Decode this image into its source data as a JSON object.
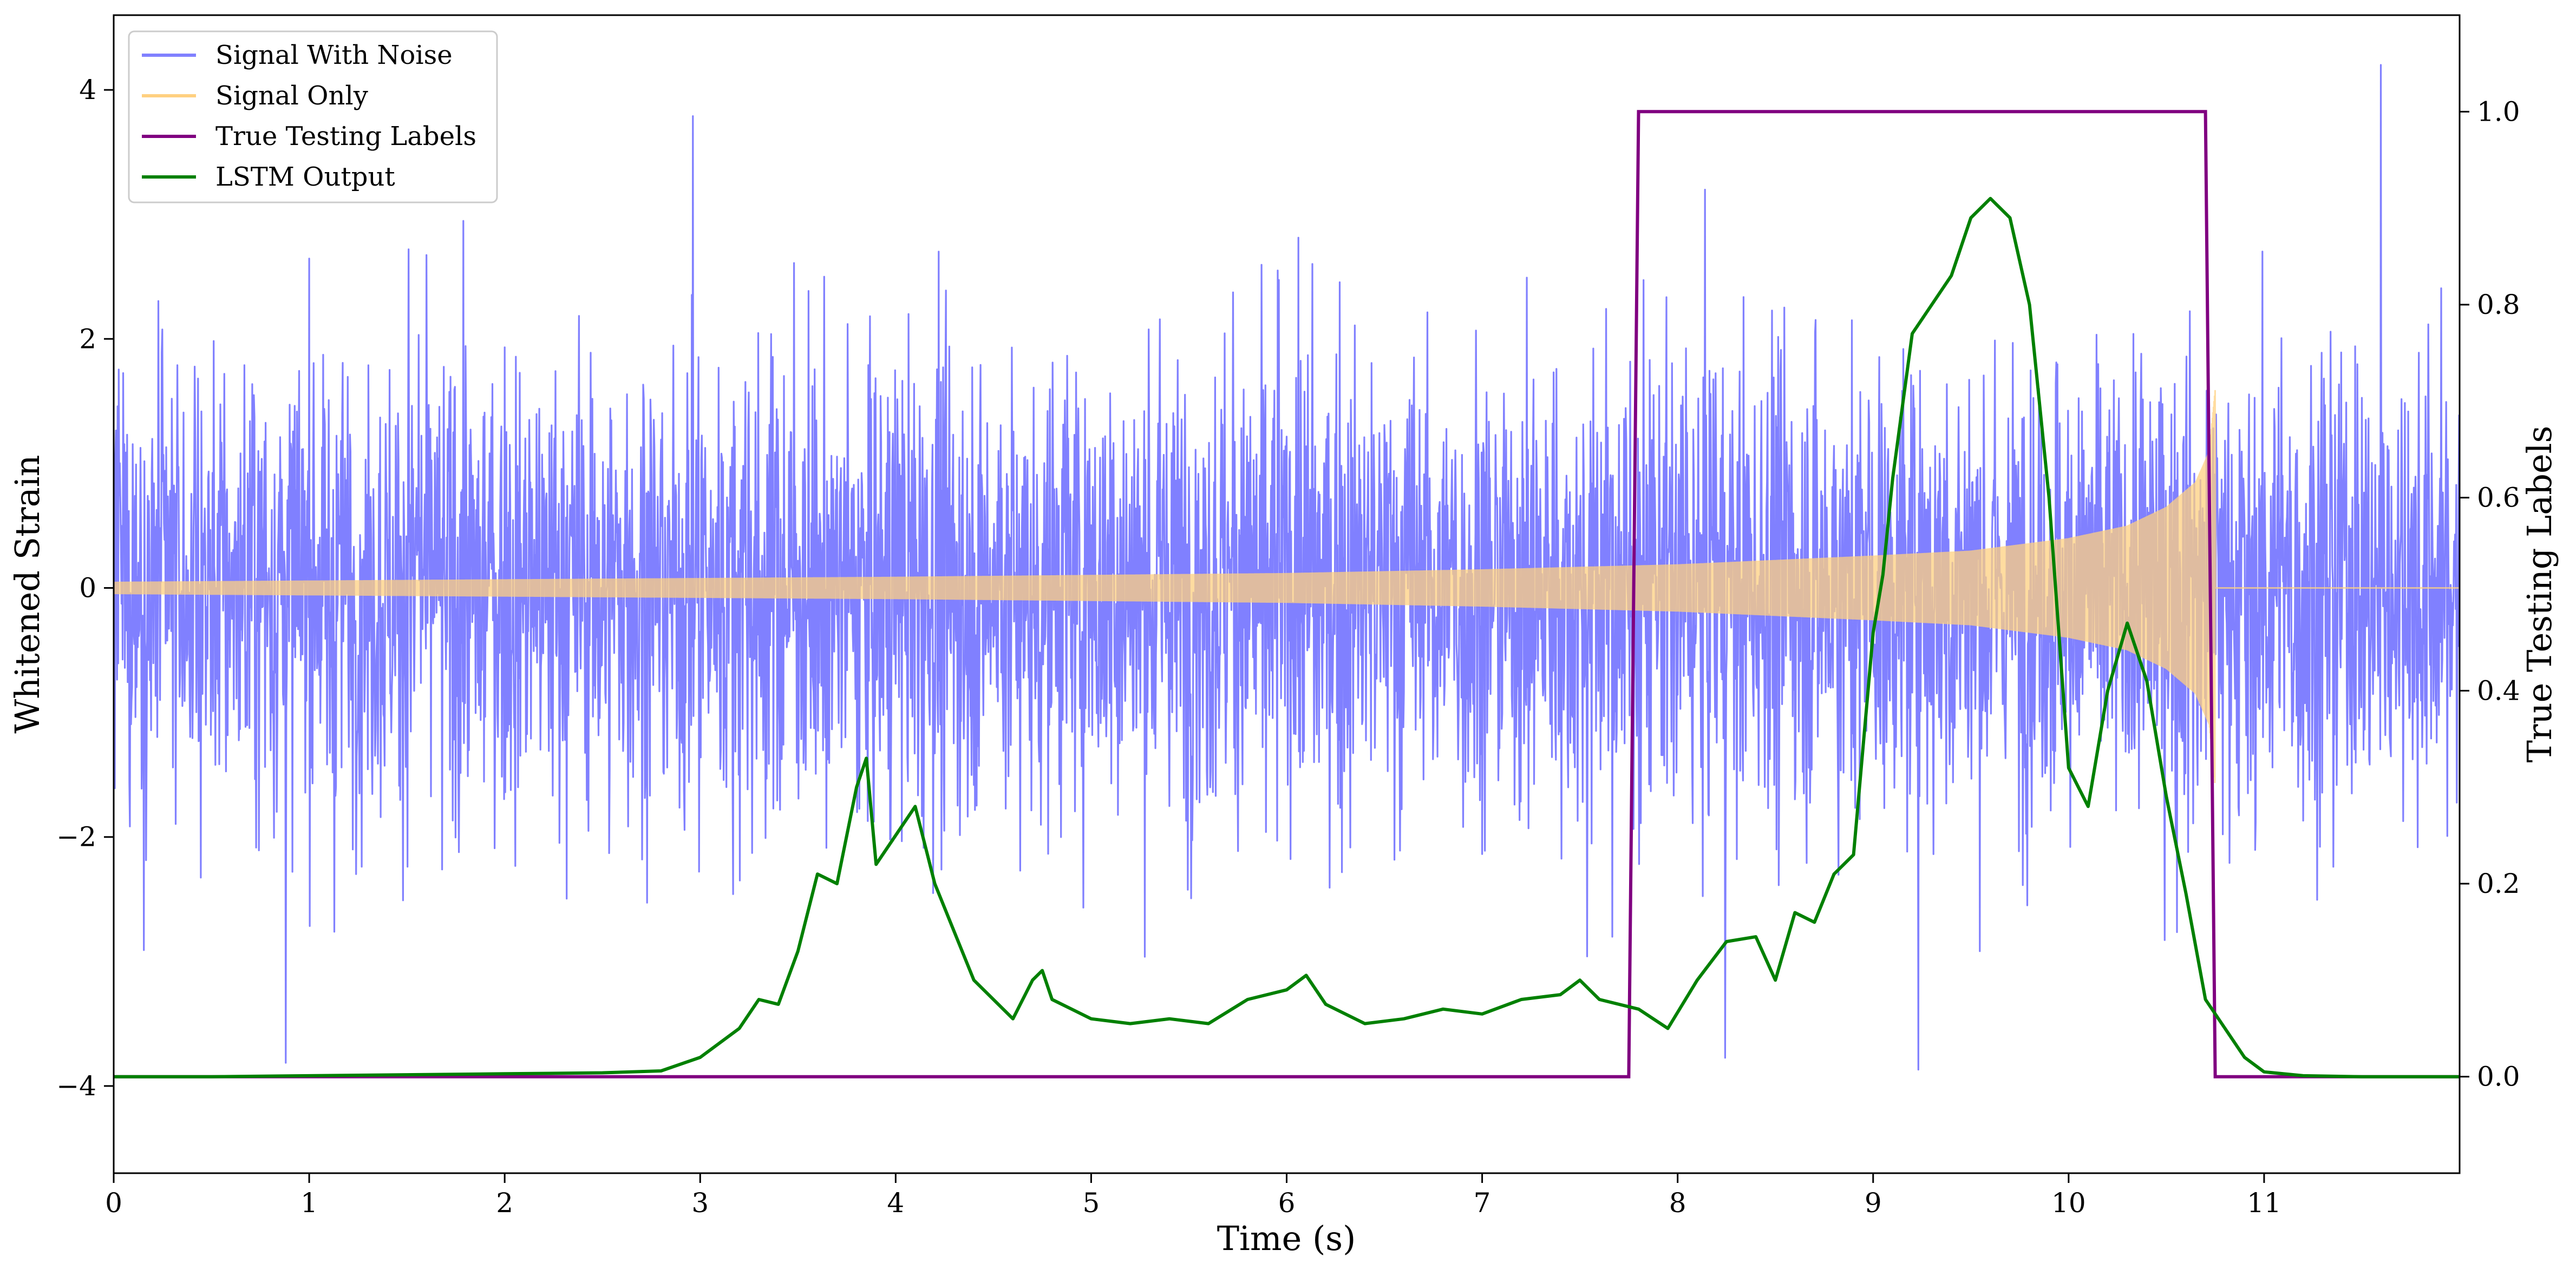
{
  "chart_data": {
    "type": "line",
    "xlabel": "Time (s)",
    "ylabel_left": "Whitened Strain",
    "ylabel_right": "True Testing Labels",
    "xlim": [
      0,
      12
    ],
    "ylim_left": [
      -4.7,
      4.6
    ],
    "ylim_right": [
      -0.1,
      1.1
    ],
    "x_ticks": [
      0,
      1,
      2,
      3,
      4,
      5,
      6,
      7,
      8,
      9,
      10,
      11
    ],
    "x_tick_labels": [
      "0",
      "1",
      "2",
      "3",
      "4",
      "5",
      "6",
      "7",
      "8",
      "9",
      "10",
      "11"
    ],
    "y_left_ticks": [
      -4,
      -2,
      0,
      2,
      4
    ],
    "y_left_tick_labels": [
      "−4",
      "−2",
      "0",
      "2",
      "4"
    ],
    "y_right_ticks": [
      0.0,
      0.2,
      0.4,
      0.6,
      0.8,
      1.0
    ],
    "y_right_tick_labels": [
      "0.0",
      "0.2",
      "0.4",
      "0.6",
      "0.8",
      "1.0"
    ],
    "legend_position": "top-left",
    "grid": false,
    "series": [
      {
        "name": "Signal With Noise",
        "axis": "left",
        "color": "#8080ff",
        "description_kind": "noise",
        "time_span": [
          0,
          12
        ],
        "typical_band": [
          -1.5,
          1.5
        ],
        "extremes": [
          -4.3,
          4.2
        ]
      },
      {
        "name": "Signal Only",
        "axis": "left",
        "color": "#ffd080",
        "description_kind": "chirp",
        "time_span": [
          0,
          12
        ],
        "merger_time": 10.75,
        "envelope": [
          [
            0,
            0.05
          ],
          [
            2,
            0.07
          ],
          [
            4,
            0.09
          ],
          [
            6,
            0.12
          ],
          [
            7,
            0.15
          ],
          [
            8,
            0.19
          ],
          [
            9,
            0.26
          ],
          [
            9.5,
            0.3
          ],
          [
            10,
            0.4
          ],
          [
            10.3,
            0.5
          ],
          [
            10.5,
            0.65
          ],
          [
            10.65,
            0.85
          ],
          [
            10.72,
            1.1
          ],
          [
            10.75,
            1.6
          ]
        ]
      },
      {
        "name": "True Testing Labels",
        "axis": "right",
        "color": "#800080",
        "x": [
          0,
          7.75,
          7.8,
          10.7,
          10.75,
          12
        ],
        "y": [
          0,
          0,
          1,
          1,
          0,
          0
        ]
      },
      {
        "name": "LSTM Output",
        "axis": "right",
        "color": "#008000",
        "x": [
          0,
          0.5,
          1.0,
          1.5,
          2.0,
          2.5,
          2.8,
          3.0,
          3.2,
          3.3,
          3.4,
          3.5,
          3.6,
          3.7,
          3.8,
          3.85,
          3.9,
          4.0,
          4.1,
          4.2,
          4.3,
          4.4,
          4.5,
          4.6,
          4.7,
          4.75,
          4.8,
          4.9,
          5.0,
          5.2,
          5.4,
          5.6,
          5.8,
          6.0,
          6.1,
          6.2,
          6.4,
          6.6,
          6.8,
          7.0,
          7.2,
          7.4,
          7.5,
          7.6,
          7.8,
          7.95,
          8.1,
          8.25,
          8.4,
          8.5,
          8.6,
          8.7,
          8.8,
          8.9,
          9.0,
          9.05,
          9.1,
          9.2,
          9.3,
          9.4,
          9.5,
          9.6,
          9.7,
          9.8,
          9.9,
          10.0,
          10.1,
          10.2,
          10.3,
          10.4,
          10.5,
          10.6,
          10.7,
          10.8,
          10.9,
          11.0,
          11.2,
          11.5,
          12.0
        ],
        "y": [
          0,
          0,
          0.001,
          0.002,
          0.003,
          0.004,
          0.006,
          0.02,
          0.05,
          0.08,
          0.075,
          0.13,
          0.21,
          0.2,
          0.3,
          0.33,
          0.22,
          0.25,
          0.28,
          0.2,
          0.15,
          0.1,
          0.08,
          0.06,
          0.1,
          0.11,
          0.08,
          0.07,
          0.06,
          0.055,
          0.06,
          0.055,
          0.08,
          0.09,
          0.105,
          0.075,
          0.055,
          0.06,
          0.07,
          0.065,
          0.08,
          0.085,
          0.1,
          0.08,
          0.07,
          0.05,
          0.1,
          0.14,
          0.145,
          0.1,
          0.17,
          0.16,
          0.21,
          0.23,
          0.46,
          0.52,
          0.62,
          0.77,
          0.8,
          0.83,
          0.89,
          0.91,
          0.89,
          0.8,
          0.6,
          0.32,
          0.28,
          0.4,
          0.47,
          0.41,
          0.29,
          0.19,
          0.08,
          0.05,
          0.02,
          0.005,
          0.001,
          0,
          0
        ]
      }
    ]
  }
}
